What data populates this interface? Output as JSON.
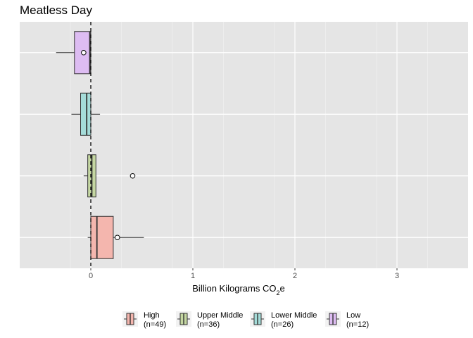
{
  "chart_data": {
    "type": "boxplot",
    "orientation": "horizontal",
    "title": "Meatless Day",
    "xlabel": "Billion Kilograms CO",
    "xlabel_sub": "2",
    "xlabel_suffix": "e",
    "ylabel": "",
    "xlim": [
      -0.7,
      3.7
    ],
    "xticks": [
      0,
      1,
      2,
      3
    ],
    "xtick_labels": [
      "0",
      "1",
      "2",
      "3"
    ],
    "reference_line": 0,
    "grid": true,
    "legend_position": "bottom",
    "series": [
      {
        "name": "High",
        "n_label": "(n=49)",
        "color": "#f4b6ae",
        "whisker_low": -0.03,
        "q1": 0.0,
        "median": 0.06,
        "q3": 0.22,
        "whisker_high": 0.52,
        "mean": 0.26,
        "outliers": []
      },
      {
        "name": "Upper Middle",
        "n_label": "(n=36)",
        "color": "#c5d7a2",
        "whisker_low": -0.07,
        "q1": -0.03,
        "median": 0.01,
        "q3": 0.05,
        "whisker_high": 0.05,
        "mean": null,
        "outliers": [
          0.41
        ]
      },
      {
        "name": "Lower Middle",
        "n_label": "(n=26)",
        "color": "#a5dcd9",
        "whisker_low": -0.19,
        "q1": -0.1,
        "median": -0.04,
        "q3": 0.0,
        "whisker_high": 0.09,
        "mean": null,
        "outliers": []
      },
      {
        "name": "Low",
        "n_label": "(n=12)",
        "color": "#ddbcf2",
        "whisker_low": -0.34,
        "q1": -0.16,
        "median": -0.01,
        "q3": 0.0,
        "whisker_high": 0.0,
        "mean": -0.07,
        "outliers": []
      }
    ]
  }
}
